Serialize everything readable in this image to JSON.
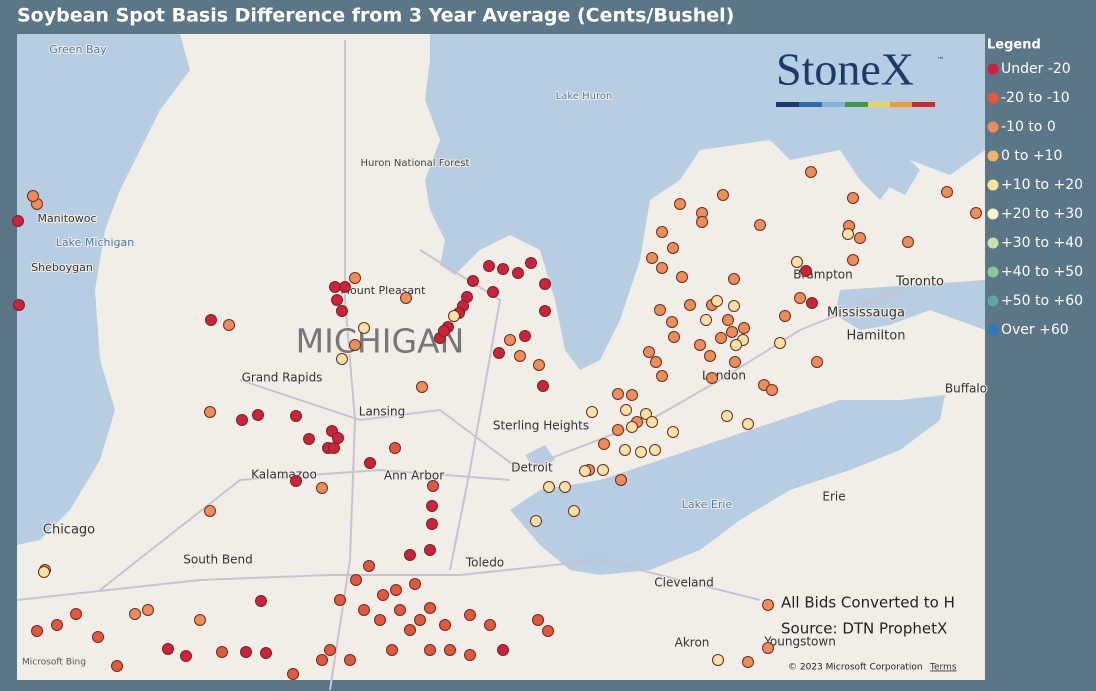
{
  "title": "Soybean Spot Basis Difference from 3 Year Average (Cents/Bushel)",
  "legend": {
    "title": "Legend",
    "items": [
      {
        "label": "Under -20",
        "color": "#d0203a"
      },
      {
        "label": "-20 to -10",
        "color": "#e4573b"
      },
      {
        "label": "-10 to 0",
        "color": "#ee8d55"
      },
      {
        "label": "0 to +10",
        "color": "#f5b36c"
      },
      {
        "label": "+10 to +20",
        "color": "#fde2a0"
      },
      {
        "label": "+20 to +30",
        "color": "#f4f7c6"
      },
      {
        "label": "+30 to +40",
        "color": "#c8e3a6"
      },
      {
        "label": "+40 to +50",
        "color": "#8cc79a"
      },
      {
        "label": "+50 to +60",
        "color": "#5ea7a6"
      },
      {
        "label": "Over +60",
        "color": "#2c7bbd"
      }
    ]
  },
  "logo": {
    "text": "StoneX",
    "trademark": "™"
  },
  "notes": [
    "All Bids Converted to H",
    "Source: DTN ProphetX"
  ],
  "map_labels": [
    "Green Bay",
    "Manitowoc",
    "Lake Michigan",
    "Sheboygan",
    "Huron National Forest",
    "Lake Huron",
    "Mount Pleasant",
    "MICHIGAN",
    "Grand Rapids",
    "Lansing",
    "Sterling Heights",
    "Detroit",
    "Kalamazoo",
    "Ann Arbor",
    "Chicago",
    "South Bend",
    "Toledo",
    "Cleveland",
    "Akron",
    "Youngstown",
    "Erie",
    "Lake Erie",
    "London",
    "Brampton",
    "Mississauga",
    "Toronto",
    "Hamilton",
    "Buffalo"
  ],
  "attribution": {
    "brand": "Microsoft Bing",
    "copyright": "© 2023 Microsoft Corporation",
    "terms": "Terms"
  }
}
